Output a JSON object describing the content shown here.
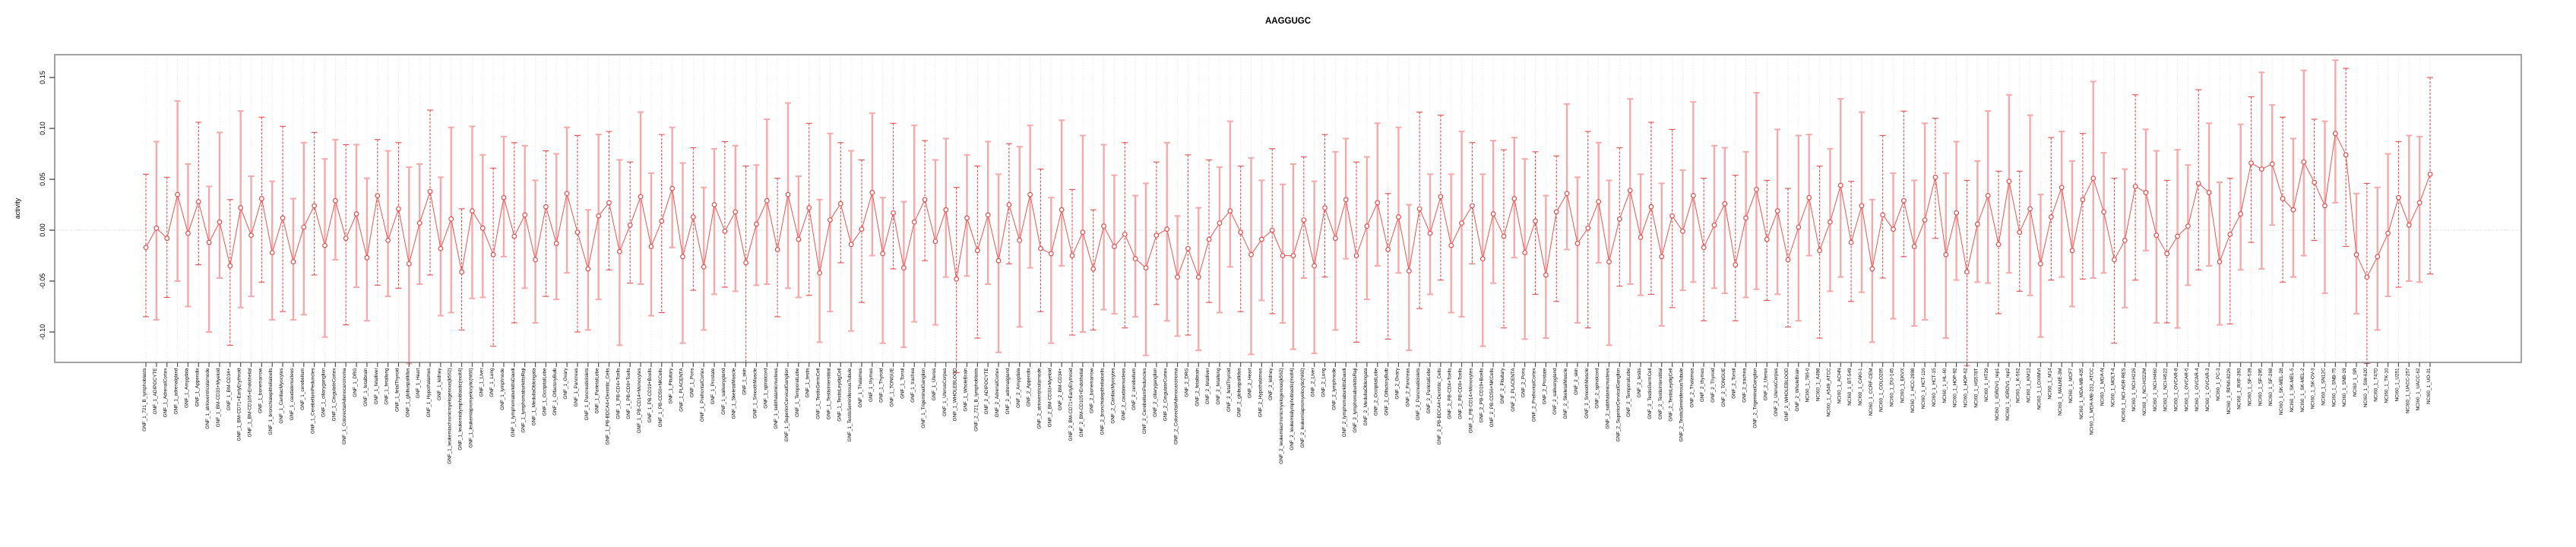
{
  "title": "AAGGUGC",
  "chart_data": {
    "type": "line",
    "subtype": "point-estimates-with-error-bars",
    "title": "AAGGUGC",
    "xlabel": "",
    "ylabel": "activity",
    "ylim": [
      -0.135,
      0.175
    ],
    "yticks": [
      0.15,
      0.1,
      0.05,
      0.0,
      -0.05,
      -0.1
    ],
    "ytick_labels": [
      "0.15",
      "0.10",
      "0.05",
      "0.00",
      "-0.05",
      "-0.10"
    ],
    "grid": "vertical dotted gridline per category; dotted horizontal line at 0",
    "legend_position": "none",
    "colors": {
      "bar_solid": "#f7a8a8",
      "bar_dashed": "#e84c4c",
      "line": "#ef5350",
      "point_stroke": "#e84c4c",
      "point_fill": "#ffffff",
      "gridline": "#dcdcdc",
      "zero_line": "#c9c9c9",
      "box": "#8c8c8c",
      "tick": "#555555",
      "text": "#000000"
    },
    "categories": [
      "GNF_1_721_B_lymphoblasts",
      "GNF_1_ADIPOCYTE",
      "GNF_1_AdrenalCortex",
      "GNF_1_adrenalgland",
      "GNF_1_Amygdala",
      "GNF_1_Appendix",
      "GNF_1_atrioventricularnode",
      "GNF_1_BM-CD33+Myeloid",
      "GNF_1_BM-CD34+",
      "GNF_1_BM-CD71+EarlyErythroid",
      "GNF_1_BM-CD105+Endothelial",
      "GNF_1_bonemarrow",
      "GNF_1_bronchialepithelialcells",
      "GNF_1_CardiacMyocytes",
      "GNF_1_caudatenucleus",
      "GNF_1_cerebellum",
      "GNF_1_CerebellumPeduncles",
      "GNF_1_ciliaryganglion",
      "GNF_1_CingulateCortex",
      "GNF_1_ColorectalAdenocarcinoma",
      "GNF_1_DRG",
      "GNF_1_fetalbrain",
      "GNF_1_fetalliver",
      "GNF_1_fetallung",
      "GNF_1_fetalThyroid",
      "GNF_1_globuspallidus",
      "GNF_1_Heart",
      "GNF_1_Hypothalamus",
      "GNF_1_kidney",
      "GNF_1_leukemiachronicmyelogenous(k562)",
      "GNF_1_leukemialymphoblastic(molt4)",
      "GNF_1_leukemiapromyelocytic(hl60)",
      "GNF_1_Liver",
      "GNF_1_Lung",
      "GNF_1_lymphnode",
      "GNF_1_lymphomaburkittsDaudi",
      "GNF_1_lymphomaburkittsRaji",
      "GNF_1_MedullaOblongata",
      "GNF_1_OccipitalLobe",
      "GNF_1_OlfactoryBulb",
      "GNF_1_Ovary",
      "GNF_1_Pancreas",
      "GNF_1_Pancreaticislets",
      "GNF_1_ParietalLobe",
      "GNF_1_PB-BDCA4+Dentritic_Cells",
      "GNF_1_PB-CD4+Tcells",
      "GNF_1_PB-CD8+Tcells",
      "GNF_1_PB-CD14+Monocytes",
      "GNF_1_PB-CD19+Bcells",
      "GNF_1_PB-CD56+NKCells",
      "GNF_1_Pituitary",
      "GNF_1_PLACENTA",
      "GNF_1_Pons",
      "GNF_1_PrefrontalCortex",
      "GNF_1_Prostate",
      "GNF_1_salivarygland",
      "GNF_1_SkeletalMuscle",
      "GNF_1_skin",
      "GNF_1_SmoothMuscle",
      "GNF_1_spinalcord",
      "GNF_1_subthalamicnucleus",
      "GNF_1_SuperiorCervicalGanglion",
      "GNF_1_TemporalLobe",
      "GNF_1_testis",
      "GNF_1_TestisGermCell",
      "GNF_1_TestisInterstitial",
      "GNF_1_TestisLeydigCell",
      "GNF_1_TestisSeminiferousTubule",
      "GNF_1_Thalamus",
      "GNF_1_thymus",
      "GNF_1_Thyroid",
      "GNF_1_TONGUE",
      "GNF_1_Tonsil",
      "GNF_1_trachea",
      "GNF_1_TrigeminalGanglion",
      "GNF_1_Uterus",
      "GNF_1_UterusCorpus",
      "GNF_1_WHOLEBLOOD",
      "GNF_1_WholeBrain",
      "GNF_2_721_B_lymphoblasts",
      "GNF_2_ADIPOCYTE",
      "GNF_2_AdrenalCortex",
      "GNF_2_adrenalgland",
      "GNF_2_Amygdala",
      "GNF_2_Appendix",
      "GNF_2_atrioventricularnode",
      "GNF_2_BM-CD33+Myeloid",
      "GNF_2_BM-CD34+",
      "GNF_2_BM-CD71+EarlyErythroid",
      "GNF_2_BM-CD105+Endothelial",
      "GNF_2_bonemarrow",
      "GNF_2_bronchialepithelialcells",
      "GNF_2_CardiacMyocytes",
      "GNF_2_caudatenucleus",
      "GNF_2_cerebellum",
      "GNF_2_CerebellumPeduncles",
      "GNF_2_ciliaryganglion",
      "GNF_2_CingulateCortex",
      "GNF_2_ColorectalAdenocarcinoma",
      "GNF_2_DRG",
      "GNF_2_fetalbrain",
      "GNF_2_fetalliver",
      "GNF_2_fetallung",
      "GNF_2_fetalThyroid",
      "GNF_2_globuspallidus",
      "GNF_2_Heart",
      "GNF_2_Hypothalamus",
      "GNF_2_kidney",
      "GNF_2_leukemiachronicmyelogenous(k562)",
      "GNF_2_leukemialymphoblastic(molt4)",
      "GNF_2_leukemiapromyelocytic(hl60)",
      "GNF_2_Liver",
      "GNF_2_Lung",
      "GNF_2_lymphnode",
      "GNF_2_lymphomaburkittsDaudi",
      "GNF_2_lymphomaburkittsRaji",
      "GNF_2_MedullaOblongata",
      "GNF_2_OccipitalLobe",
      "GNF_2_OlfactoryBulb",
      "GNF_2_Ovary",
      "GNF_2_Pancreas",
      "GNF_2_Pancreaticislets",
      "GNF_2_ParietalLobe",
      "GNF_2_PB-BDCA4+Dentritic_Cells",
      "GNF_2_PB-CD4+Tcells",
      "GNF_2_PB-CD8+Tcells",
      "GNF_2_PB-CD14+Monocytes",
      "GNF_2_PB-CD19+Bcells",
      "GNF_2_PB-CD56+NKCells",
      "GNF_2_Pituitary",
      "GNF_2_PLACENTA",
      "GNF_2_Pons",
      "GNF_2_PrefrontalCortex",
      "GNF_2_Prostate",
      "GNF_2_salivarygland",
      "GNF_2_SkeletalMuscle",
      "GNF_2_skin",
      "GNF_2_SmoothMuscle",
      "GNF_2_spinalcord",
      "GNF_2_subthalamicnucleus",
      "GNF_2_SuperiorCervicalGanglion",
      "GNF_2_TemporalLobe",
      "GNF_2_testis",
      "GNF_2_TestisGermCell",
      "GNF_2_TestisInterstitial",
      "GNF_2_TestisLeydigCell",
      "GNF_2_TestisSeminiferousTubule",
      "GNF_2_Thalamus",
      "GNF_2_thymus",
      "GNF_2_Thyroid",
      "GNF_2_TONGUE",
      "GNF_2_Tonsil",
      "GNF_2_trachea",
      "GNF_2_TrigeminalGanglion",
      "GNF_2_Uterus",
      "GNF_2_UterusCorpus",
      "GNF_2_WHOLEBLOOD",
      "GNF_2_WholeBrain",
      "NCI60_1_786-0",
      "NCI60_1_A498",
      "NCI60_1_A549_ATCC",
      "NCI60_1_ACHN",
      "NCI60_1_BT-549",
      "NCI60_1_CAKI-1",
      "NCI60_1_CCRF-CEM",
      "NCI60_1_COLO205",
      "NCI60_1_DU-145",
      "NCI60_1_EKVX",
      "NCI60_1_HCC-2998",
      "NCI60_1_HCT-116",
      "NCI60_1_HCT-15",
      "NCI60_1_HL-60",
      "NCI60_1_HOP-92",
      "NCI60_1_HOP-62",
      "NCI60_1_HS578T",
      "NCI60_1_HT29",
      "NCI60_1_IGROV1_rep1",
      "NCI60_1_IGROV1_rep2",
      "NCI60_1_K-562",
      "NCI60_1_KM12",
      "NCI60_1_LOXIMVI",
      "NCI60_1_M14",
      "NCI60_1_MALME-3M",
      "NCI60_1_MCF7",
      "NCI60_1_MDA-MB-435",
      "NCI60_1_MDA-MB-231_ATCC",
      "NCI60_1_MDA-N",
      "NCI60_1_MOLT-4",
      "NCI60_1_NCI-ADR-RES",
      "NCI60_1_NCI-H226",
      "NCI60_1_NCI-H322M",
      "NCI60_1_NCI-H460",
      "NCI60_1_NCI-H522",
      "NCI60_1_OVCAR-8",
      "NCI60_1_OVCAR-5",
      "NCI60_1_OVCAR-4",
      "NCI60_1_OVCAR-3",
      "NCI60_1_PC-3",
      "NCI60_1_RPMI-8226",
      "NCI60_1_RXF-393",
      "NCI60_1_SF-539",
      "NCI60_1_SF-295",
      "NCI60_1_SF-268",
      "NCI60_1_SK-MEL-28",
      "NCI60_1_SK-MEL-5",
      "NCI60_1_SK-MEL-2",
      "NCI60_1_SK-OV-3",
      "NCI60_1_SN12C",
      "NCI60_1_SNB-75",
      "NCI60_1_SNB-19",
      "NCI60_1_SR",
      "NCI60_1_SW-620",
      "NCI60_1_T47D",
      "NCI60_1_TK-10",
      "NCI60_1_U251",
      "NCI60_1_UACC-257",
      "NCI60_1_UACC-62",
      "NCI60_1_UO-31"
    ],
    "series": [
      {
        "name": "activity",
        "means": [
          -0.017,
          0.002,
          -0.008,
          0.035,
          -0.003,
          0.028,
          -0.012,
          0.008,
          -0.035,
          0.022,
          -0.005,
          0.031,
          -0.022,
          0.012,
          -0.031,
          0.003,
          0.024,
          -0.015,
          0.029,
          -0.008,
          0.016,
          -0.027,
          0.034,
          -0.01,
          0.021,
          -0.033,
          0.007,
          0.038,
          -0.018,
          0.011,
          -0.041,
          0.019,
          0.002,
          -0.024,
          0.032,
          -0.006,
          0.015,
          -0.029,
          0.023,
          -0.013,
          0.036,
          -0.002,
          -0.038,
          0.014,
          0.027,
          -0.021,
          0.005,
          0.033,
          -0.016,
          0.009,
          0.041,
          -0.026,
          0.013,
          -0.036,
          0.025,
          -0.001,
          0.018,
          -0.032,
          0.006,
          0.029,
          -0.019,
          0.035,
          -0.009,
          0.022,
          -0.042,
          0.01,
          0.026,
          -0.014,
          0.001,
          0.037,
          -0.023,
          0.017,
          -0.037,
          0.008,
          0.03,
          -0.011,
          0.02,
          -0.048,
          0.012,
          -0.02,
          0.015,
          -0.03,
          0.025,
          -0.01,
          0.035,
          -0.018,
          -0.023,
          0.02,
          -0.025,
          -0.002,
          -0.038,
          0.004,
          -0.016,
          -0.004,
          -0.028,
          -0.037,
          -0.005,
          0.001,
          -0.046,
          -0.018,
          -0.046,
          -0.009,
          0.007,
          0.019,
          -0.002,
          -0.024,
          -0.009,
          0.0,
          -0.025,
          -0.025,
          0.01,
          -0.035,
          0.022,
          -0.008,
          0.03,
          -0.025,
          0.004,
          0.027,
          -0.019,
          0.013,
          -0.04,
          0.021,
          -0.003,
          0.033,
          -0.015,
          0.007,
          0.024,
          -0.028,
          0.016,
          -0.006,
          0.031,
          -0.022,
          0.009,
          -0.044,
          0.018,
          0.036,
          -0.013,
          0.002,
          0.028,
          -0.031,
          0.011,
          0.039,
          -0.007,
          0.023,
          -0.026,
          0.014,
          -0.001,
          0.034,
          -0.017,
          0.005,
          0.026,
          -0.034,
          0.012,
          0.04,
          -0.009,
          0.019,
          -0.029,
          0.003,
          0.032,
          -0.02,
          0.008,
          0.044,
          -0.012,
          0.024,
          -0.038,
          0.015,
          0.001,
          0.029,
          -0.016,
          0.01,
          0.052,
          -0.024,
          0.017,
          -0.041,
          0.006,
          0.034,
          -0.014,
          0.048,
          -0.002,
          0.021,
          -0.033,
          0.013,
          0.042,
          -0.02,
          0.03,
          0.051,
          0.018,
          -0.029,
          -0.01,
          0.043,
          0.037,
          -0.005,
          -0.023,
          -0.006,
          0.004,
          0.046,
          0.037,
          -0.031,
          -0.004,
          0.016,
          0.066,
          0.06,
          0.065,
          0.031,
          0.02,
          0.067,
          0.047,
          0.024,
          0.095,
          0.074,
          -0.024,
          -0.046,
          -0.026,
          -0.003,
          0.032,
          0.005,
          0.027,
          0.055
        ],
        "err_up": [
          0.072,
          0.085,
          0.06,
          0.092,
          0.068,
          0.078,
          0.055,
          0.088,
          0.065,
          0.095,
          0.058,
          0.08,
          0.07,
          0.09,
          0.062,
          0.083,
          0.072,
          0.085,
          0.06,
          0.092,
          0.068,
          0.078,
          0.055,
          0.088,
          0.065,
          0.095,
          0.058,
          0.08,
          0.07,
          0.09,
          0.062,
          0.083,
          0.072,
          0.085,
          0.06,
          0.092,
          0.068,
          0.078,
          0.055,
          0.088,
          0.065,
          0.095,
          0.058,
          0.08,
          0.07,
          0.09,
          0.062,
          0.083,
          0.072,
          0.085,
          0.06,
          0.092,
          0.068,
          0.078,
          0.055,
          0.088,
          0.065,
          0.095,
          0.058,
          0.08,
          0.07,
          0.09,
          0.062,
          0.083,
          0.072,
          0.085,
          0.06,
          0.092,
          0.068,
          0.078,
          0.055,
          0.088,
          0.065,
          0.095,
          0.058,
          0.08,
          0.07,
          0.09,
          0.062,
          0.083,
          0.072,
          0.085,
          0.06,
          0.092,
          0.068,
          0.078,
          0.055,
          0.088,
          0.065,
          0.095,
          0.058,
          0.08,
          0.07,
          0.09,
          0.062,
          0.083,
          0.072,
          0.085,
          0.06,
          0.092,
          0.068,
          0.078,
          0.055,
          0.088,
          0.065,
          0.095,
          0.058,
          0.08,
          0.07,
          0.09,
          0.062,
          0.083,
          0.072,
          0.085,
          0.06,
          0.092,
          0.068,
          0.078,
          0.055,
          0.088,
          0.065,
          0.095,
          0.058,
          0.08,
          0.07,
          0.09,
          0.062,
          0.083,
          0.072,
          0.085,
          0.06,
          0.092,
          0.068,
          0.078,
          0.055,
          0.088,
          0.065,
          0.095,
          0.058,
          0.08,
          0.07,
          0.09,
          0.062,
          0.083,
          0.072,
          0.085,
          0.06,
          0.092,
          0.068,
          0.078,
          0.055,
          0.088,
          0.065,
          0.095,
          0.058,
          0.08,
          0.07,
          0.09,
          0.062,
          0.083,
          0.072,
          0.085,
          0.06,
          0.092,
          0.068,
          0.078,
          0.055,
          0.088,
          0.065,
          0.095,
          0.058,
          0.08,
          0.07,
          0.09,
          0.062,
          0.083,
          0.072,
          0.085,
          0.06,
          0.092,
          0.068,
          0.078,
          0.055,
          0.088,
          0.065,
          0.095,
          0.058,
          0.08,
          0.07,
          0.09,
          0.062,
          0.083,
          0.072,
          0.085,
          0.06,
          0.092,
          0.068,
          0.078,
          0.055,
          0.088,
          0.065,
          0.095,
          0.058,
          0.08,
          0.07,
          0.09,
          0.062,
          0.083,
          0.072,
          0.085,
          0.06,
          0.092,
          0.068,
          0.078,
          0.055,
          0.088,
          0.065,
          0.095
        ],
        "err_dn": [
          0.068,
          0.09,
          0.058,
          0.085,
          0.072,
          0.062,
          0.088,
          0.055,
          0.078,
          0.098,
          0.06,
          0.082,
          0.066,
          0.092,
          0.057,
          0.086,
          0.068,
          0.09,
          0.058,
          0.085,
          0.072,
          0.062,
          0.088,
          0.055,
          0.078,
          0.098,
          0.06,
          0.082,
          0.066,
          0.092,
          0.057,
          0.086,
          0.068,
          0.09,
          0.058,
          0.085,
          0.072,
          0.062,
          0.088,
          0.055,
          0.078,
          0.098,
          0.06,
          0.082,
          0.066,
          0.092,
          0.057,
          0.086,
          0.068,
          0.09,
          0.058,
          0.085,
          0.072,
          0.062,
          0.088,
          0.055,
          0.078,
          0.098,
          0.06,
          0.082,
          0.066,
          0.092,
          0.057,
          0.086,
          0.068,
          0.09,
          0.058,
          0.085,
          0.072,
          0.062,
          0.088,
          0.055,
          0.078,
          0.098,
          0.06,
          0.082,
          0.066,
          0.092,
          0.057,
          0.086,
          0.068,
          0.09,
          0.058,
          0.085,
          0.072,
          0.062,
          0.088,
          0.055,
          0.078,
          0.098,
          0.06,
          0.082,
          0.066,
          0.092,
          0.057,
          0.086,
          0.068,
          0.09,
          0.058,
          0.085,
          0.072,
          0.062,
          0.088,
          0.055,
          0.078,
          0.098,
          0.06,
          0.082,
          0.066,
          0.092,
          0.057,
          0.086,
          0.068,
          0.09,
          0.058,
          0.085,
          0.072,
          0.062,
          0.088,
          0.055,
          0.078,
          0.098,
          0.06,
          0.082,
          0.066,
          0.092,
          0.057,
          0.086,
          0.068,
          0.09,
          0.058,
          0.085,
          0.072,
          0.062,
          0.088,
          0.055,
          0.078,
          0.098,
          0.06,
          0.082,
          0.066,
          0.092,
          0.057,
          0.086,
          0.068,
          0.09,
          0.058,
          0.085,
          0.072,
          0.062,
          0.088,
          0.055,
          0.078,
          0.098,
          0.06,
          0.082,
          0.066,
          0.092,
          0.057,
          0.086,
          0.068,
          0.09,
          0.058,
          0.085,
          0.072,
          0.062,
          0.088,
          0.055,
          0.078,
          0.098,
          0.06,
          0.082,
          0.066,
          0.092,
          0.057,
          0.086,
          0.068,
          0.09,
          0.058,
          0.085,
          0.072,
          0.062,
          0.088,
          0.055,
          0.078,
          0.098,
          0.06,
          0.082,
          0.066,
          0.092,
          0.057,
          0.086,
          0.068,
          0.09,
          0.058,
          0.085,
          0.072,
          0.062,
          0.088,
          0.055,
          0.078,
          0.098,
          0.06,
          0.082,
          0.066,
          0.092,
          0.057,
          0.086,
          0.068,
          0.09,
          0.058,
          0.085,
          0.072,
          0.062,
          0.088,
          0.055,
          0.078,
          0.098
        ]
      }
    ],
    "bar_style_note": "error bars alternate irregularly between thick light-pink solid and thin dark-red dashed"
  }
}
